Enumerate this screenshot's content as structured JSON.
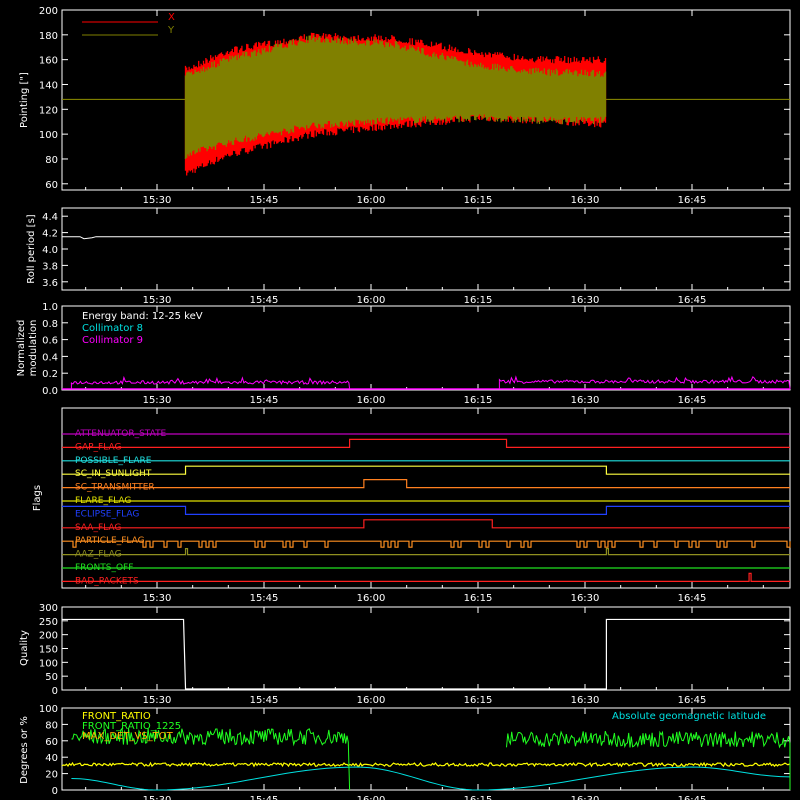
{
  "x_ticks": [
    "15:30",
    "15:45",
    "16:00",
    "16:15",
    "16:30",
    "16:45"
  ],
  "panels": {
    "pointing": {
      "ylabel": "Pointing [\"]",
      "y_ticks": [
        "60",
        "80",
        "100",
        "120",
        "140",
        "160",
        "180",
        "200"
      ],
      "legend": [
        {
          "name": "X",
          "color": "#ff0000"
        },
        {
          "name": "Y",
          "color": "#808000"
        }
      ]
    },
    "roll": {
      "ylabel": "Roll period [s]",
      "y_ticks": [
        "3.6",
        "3.8",
        "4.0",
        "4.2",
        "4.4"
      ]
    },
    "modulation": {
      "ylabel_line1": "Normalized",
      "ylabel_line2": "modulation",
      "y_ticks": [
        "0.0",
        "0.2",
        "0.4",
        "0.6",
        "0.8",
        "1.0"
      ],
      "legend": [
        {
          "name": "Energy band: 12-25 keV",
          "color": "#ffffff"
        },
        {
          "name": "Collimator 8",
          "color": "#00e0e0"
        },
        {
          "name": "Collimator 9",
          "color": "#ff00ff"
        }
      ]
    },
    "flags": {
      "ylabel": "Flags",
      "items": [
        {
          "name": "ATTENUATOR_STATE",
          "color": "#c000c0"
        },
        {
          "name": "GAP_FLAG",
          "color": "#ff2020"
        },
        {
          "name": "POSSIBLE_FLARE",
          "color": "#20e0e0"
        },
        {
          "name": "SC_IN_SUNLIGHT",
          "color": "#ffff40"
        },
        {
          "name": "SC_TRANSMITTER",
          "color": "#ff8020"
        },
        {
          "name": "FLARE_FLAG",
          "color": "#e0e000"
        },
        {
          "name": "ECLIPSE_FLAG",
          "color": "#2040ff"
        },
        {
          "name": "SAA_FLAG",
          "color": "#ff2020"
        },
        {
          "name": "PARTICLE_FLAG",
          "color": "#ff9020"
        },
        {
          "name": "AAZ_FLAG",
          "color": "#909020"
        },
        {
          "name": "FRONTS_OFF",
          "color": "#20e020"
        },
        {
          "name": "BAD_PACKETS",
          "color": "#ff2020"
        }
      ]
    },
    "quality": {
      "ylabel": "Quality",
      "y_ticks": [
        "0",
        "50",
        "100",
        "150",
        "200",
        "250",
        "300"
      ]
    },
    "ratios": {
      "ylabel": "Degrees or %",
      "y_ticks": [
        "0",
        "20",
        "40",
        "60",
        "80",
        "100"
      ],
      "legend": [
        {
          "name": "FRONT_RATIO",
          "color": "#ffff00"
        },
        {
          "name": "FRONT_RATIO_1225",
          "color": "#20ff20"
        },
        {
          "name": "MAX_DET_VS_TOT",
          "color": "#ffb000"
        }
      ],
      "right_legend": {
        "name": "Absolute geomagnetic latitude",
        "color": "#00e0e0"
      }
    }
  },
  "chart_data": {
    "type": "line",
    "x_units": "UT time",
    "x_range": [
      "15:18",
      "16:59"
    ],
    "pointing": {
      "ylim": [
        55,
        200
      ],
      "segment": [
        "15:34",
        "16:33"
      ],
      "series": [
        {
          "name": "X",
          "envelope_top": [
            [
              0,
              155
            ],
            [
              0.1,
              170
            ],
            [
              0.3,
              182
            ],
            [
              0.5,
              180
            ],
            [
              0.7,
              168
            ],
            [
              0.85,
              163
            ],
            [
              1,
              163
            ]
          ],
          "envelope_bottom": [
            [
              0,
              65
            ],
            [
              0.1,
              80
            ],
            [
              0.3,
              97
            ],
            [
              0.5,
              104
            ],
            [
              0.7,
              110
            ],
            [
              0.85,
              108
            ],
            [
              1,
              105
            ]
          ]
        },
        {
          "name": "Y",
          "envelope_top": [
            [
              0,
              150
            ],
            [
              0.1,
              163
            ],
            [
              0.3,
              180
            ],
            [
              0.5,
              175
            ],
            [
              0.7,
              158
            ],
            [
              0.85,
              153
            ],
            [
              1,
              152
            ]
          ],
          "envelope_bottom": [
            [
              0,
              80
            ],
            [
              0.1,
              90
            ],
            [
              0.3,
              104
            ],
            [
              0.5,
              108
            ],
            [
              0.7,
              110
            ],
            [
              0.85,
              108
            ],
            [
              1,
              108
            ]
          ]
        }
      ],
      "flat_level": 128
    },
    "roll_period": {
      "ylim": [
        3.5,
        4.5
      ],
      "level": 4.15
    },
    "modulation": {
      "ylim": [
        0,
        1
      ],
      "segments": [
        [
          "15:18",
          "15:57",
          0.09
        ],
        [
          "16:18",
          "16:59",
          0.1
        ]
      ]
    },
    "flags": {
      "transitions": {
        "GAP_FLAG": [
          [
            "15:57",
            "16:19"
          ]
        ],
        "SC_IN_SUNLIGHT": [
          [
            "15:34",
            "16:33"
          ]
        ],
        "SC_TRANSMITTER": [
          [
            "15:59",
            "16:05"
          ]
        ],
        "ECLIPSE_FLAG": [
          [
            "15:34",
            "16:33"
          ]
        ],
        "SAA_FLAG": [
          [
            "15:59",
            "16:17"
          ]
        ],
        "BAD_PACKETS": [
          [
            "16:53",
            "16:53"
          ]
        ]
      }
    },
    "quality": {
      "ylim": [
        0,
        300
      ],
      "segments": [
        [
          "15:18",
          "15:34",
          255
        ],
        [
          "16:33",
          "16:59",
          255
        ]
      ]
    },
    "ratios": {
      "ylim": [
        0,
        100
      ],
      "front_ratio_1225": [
        [
          "15:18",
          "15:57",
          65
        ],
        [
          "16:19",
          "16:59",
          62
        ]
      ],
      "front_ratio": [
        [
          "15:18",
          "16:59",
          31
        ]
      ],
      "geomagnetic_latitude_peaks": [
        [
          "15:18",
          14
        ],
        [
          "15:30",
          0
        ],
        [
          "15:58",
          28
        ],
        [
          "16:15",
          0
        ],
        [
          "16:45",
          28
        ],
        [
          "16:59",
          16
        ]
      ]
    }
  }
}
